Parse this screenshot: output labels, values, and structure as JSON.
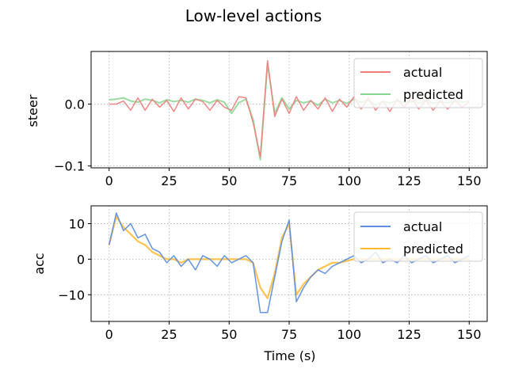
{
  "figure": {
    "suptitle": "Low-level actions"
  },
  "chart_data": [
    {
      "type": "line",
      "ylabel": "steer",
      "xlabel": "",
      "xlim": [
        -7.5,
        157.5
      ],
      "ylim": [
        -0.103,
        0.085
      ],
      "xticks": [
        0,
        25,
        50,
        75,
        100,
        125,
        150
      ],
      "xtick_labels": [
        "0",
        "25",
        "50",
        "75",
        "100",
        "125",
        "150"
      ],
      "yticks": [
        -0.1,
        0.0
      ],
      "ytick_labels": [
        "−0.1",
        "0.0"
      ],
      "grid": true,
      "legend_position": "upper-right",
      "series": [
        {
          "name": "actual",
          "color": "#f08080",
          "linewidth": 1.5,
          "x": [
            0,
            3,
            6,
            9,
            12,
            15,
            18,
            21,
            24,
            27,
            30,
            33,
            36,
            39,
            42,
            45,
            48,
            51,
            54,
            57,
            60,
            63,
            66,
            69,
            72,
            75,
            78,
            81,
            84,
            87,
            90,
            93,
            96,
            99,
            102,
            105,
            108,
            111,
            114,
            117,
            120,
            123,
            126,
            129,
            132,
            135,
            138,
            141,
            144,
            147,
            150
          ],
          "y": [
            0,
            0,
            0.005,
            -0.01,
            0.01,
            -0.01,
            0.008,
            -0.005,
            0.006,
            -0.012,
            0.01,
            -0.008,
            0.008,
            0.004,
            -0.01,
            0.006,
            -0.005,
            -0.01,
            0.012,
            0.01,
            -0.03,
            -0.085,
            0.07,
            -0.02,
            0.008,
            -0.015,
            0.012,
            -0.01,
            0.006,
            -0.008,
            0.01,
            -0.012,
            0.008,
            -0.005,
            0.012,
            -0.008,
            0.01,
            -0.01,
            0.005,
            -0.012,
            0.008,
            -0.005,
            0.01,
            -0.008,
            0.006,
            -0.01,
            0.005,
            -0.008,
            0.006,
            -0.005,
            0.004
          ]
        },
        {
          "name": "predicted",
          "color": "#86d68f",
          "linewidth": 2,
          "x": [
            0,
            3,
            6,
            9,
            12,
            15,
            18,
            21,
            24,
            27,
            30,
            33,
            36,
            39,
            42,
            45,
            48,
            51,
            54,
            57,
            60,
            63,
            66,
            69,
            72,
            75,
            78,
            81,
            84,
            87,
            90,
            93,
            96,
            99,
            102,
            105,
            108,
            111,
            114,
            117,
            120,
            123,
            126,
            129,
            132,
            135,
            138,
            141,
            144,
            147,
            150
          ],
          "y": [
            0.007,
            0.008,
            0.01,
            0.005,
            0.003,
            0.008,
            0.006,
            0.002,
            0.007,
            0.004,
            0.006,
            0.003,
            0.008,
            0.006,
            0.002,
            0.007,
            0.003,
            -0.015,
            0.002,
            0.008,
            -0.025,
            -0.09,
            0.065,
            -0.015,
            0.01,
            -0.008,
            0.006,
            0.002,
            0.005,
            -0.002,
            0.008,
            0.002,
            0.006,
            0.001,
            0.008,
            0.003,
            0.006,
            -0.002,
            0.004,
            0.002,
            0.005,
            0.003,
            0.004,
            0.002,
            0.006,
            0.001,
            0.004,
            0.002,
            0.005,
            0.003,
            0.005
          ]
        }
      ]
    },
    {
      "type": "line",
      "ylabel": "acc",
      "xlabel": "Time (s)",
      "xlim": [
        -7.5,
        157.5
      ],
      "ylim": [
        -17.5,
        15
      ],
      "xticks": [
        0,
        25,
        50,
        75,
        100,
        125,
        150
      ],
      "xtick_labels": [
        "0",
        "25",
        "50",
        "75",
        "100",
        "125",
        "150"
      ],
      "yticks": [
        -10,
        0,
        10
      ],
      "ytick_labels": [
        "−10",
        "0",
        "10"
      ],
      "grid": true,
      "legend_position": "upper-right",
      "series": [
        {
          "name": "actual",
          "color": "#5b8fe0",
          "linewidth": 1.5,
          "x": [
            0,
            3,
            6,
            9,
            12,
            15,
            18,
            21,
            24,
            27,
            30,
            33,
            36,
            39,
            42,
            45,
            48,
            51,
            54,
            57,
            60,
            63,
            66,
            69,
            72,
            75,
            78,
            81,
            84,
            87,
            90,
            93,
            96,
            99,
            102,
            105,
            108,
            111,
            114,
            117,
            120,
            123,
            126,
            129,
            132,
            135,
            138,
            141,
            144,
            147,
            150
          ],
          "y": [
            4,
            13,
            8,
            10,
            6,
            7,
            3,
            2,
            -1,
            1,
            -2,
            0,
            -3,
            1,
            0,
            -2,
            1,
            -1,
            0,
            1,
            -1,
            -15,
            -15,
            -5,
            5,
            11,
            -12,
            -8,
            -5,
            -3,
            -4,
            -2,
            -1,
            0,
            1,
            -1,
            0,
            2,
            -1,
            0,
            -1,
            1,
            -1,
            0,
            1,
            -1,
            0,
            1,
            -1,
            0,
            1
          ]
        },
        {
          "name": "predicted",
          "color": "#ffb833",
          "linewidth": 2.2,
          "x": [
            0,
            3,
            6,
            9,
            12,
            15,
            18,
            21,
            24,
            27,
            30,
            33,
            36,
            39,
            42,
            45,
            48,
            51,
            54,
            57,
            60,
            63,
            66,
            69,
            72,
            75,
            78,
            81,
            84,
            87,
            90,
            93,
            96,
            99,
            102,
            105,
            108,
            111,
            114,
            117,
            120,
            123,
            126,
            129,
            132,
            135,
            138,
            141,
            144,
            147,
            150
          ],
          "y": [
            4,
            12,
            9,
            7,
            5,
            4,
            2,
            1,
            0,
            0,
            -1,
            0,
            0,
            0,
            0,
            0,
            0,
            0,
            0,
            0,
            -1,
            -8,
            -11,
            -4,
            6,
            10,
            -10,
            -7,
            -5,
            -3,
            -2,
            -1,
            -1,
            -0.5,
            0,
            0,
            0,
            0,
            0,
            0,
            0,
            0,
            0,
            0,
            0,
            0,
            0,
            0,
            0,
            0,
            0
          ]
        }
      ]
    }
  ]
}
